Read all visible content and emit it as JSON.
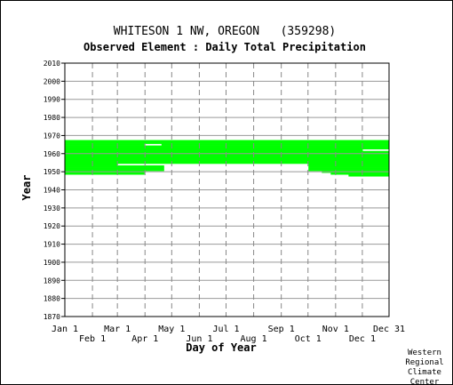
{
  "chart_data": {
    "type": "heatmap",
    "title": "WHITESON 1 NW, OREGON   (359298)",
    "subtitle": "Observed Element : Daily Total Precipitation",
    "xlabel": "Day of Year",
    "ylabel": "Year",
    "xlim": [
      1,
      365
    ],
    "ylim": [
      1870,
      2010
    ],
    "y_ticks": [
      2010,
      2000,
      1990,
      1980,
      1970,
      1960,
      1950,
      1940,
      1930,
      1920,
      1910,
      1900,
      1890,
      1880,
      1870
    ],
    "x_ticks_top_row": [
      {
        "day": 1,
        "label": "Jan 1"
      },
      {
        "day": 60,
        "label": "Mar 1"
      },
      {
        "day": 121,
        "label": "May 1"
      },
      {
        "day": 182,
        "label": "Jul 1"
      },
      {
        "day": 244,
        "label": "Sep 1"
      },
      {
        "day": 305,
        "label": "Nov 1"
      },
      {
        "day": 365,
        "label": "Dec 31"
      }
    ],
    "x_ticks_bottom_row": [
      {
        "day": 32,
        "label": "Feb 1"
      },
      {
        "day": 91,
        "label": "Apr 1"
      },
      {
        "day": 152,
        "label": "Jun 1"
      },
      {
        "day": 213,
        "label": "Aug 1"
      },
      {
        "day": 274,
        "label": "Oct 1"
      },
      {
        "day": 335,
        "label": "Dec 1"
      }
    ],
    "grid": true,
    "data_color": "#00ff00",
    "coverage_segments": [
      {
        "year": 1967,
        "start_day": 1,
        "end_day": 365
      },
      {
        "year": 1966,
        "start_day": 1,
        "end_day": 365
      },
      {
        "year": 1965,
        "start_day": 1,
        "end_day": 90
      },
      {
        "year": 1965,
        "start_day": 110,
        "end_day": 365
      },
      {
        "year": 1964,
        "start_day": 1,
        "end_day": 365
      },
      {
        "year": 1963,
        "start_day": 1,
        "end_day": 365
      },
      {
        "year": 1962,
        "start_day": 1,
        "end_day": 335
      },
      {
        "year": 1961,
        "start_day": 1,
        "end_day": 365
      },
      {
        "year": 1960,
        "start_day": 1,
        "end_day": 365
      },
      {
        "year": 1959,
        "start_day": 1,
        "end_day": 365
      },
      {
        "year": 1958,
        "start_day": 1,
        "end_day": 365
      },
      {
        "year": 1957,
        "start_day": 1,
        "end_day": 365
      },
      {
        "year": 1956,
        "start_day": 1,
        "end_day": 365
      },
      {
        "year": 1955,
        "start_day": 1,
        "end_day": 365
      },
      {
        "year": 1954,
        "start_day": 1,
        "end_day": 60
      },
      {
        "year": 1954,
        "start_day": 275,
        "end_day": 365
      },
      {
        "year": 1953,
        "start_day": 1,
        "end_day": 112
      },
      {
        "year": 1953,
        "start_day": 275,
        "end_day": 365
      },
      {
        "year": 1952,
        "start_day": 1,
        "end_day": 112
      },
      {
        "year": 1952,
        "start_day": 275,
        "end_day": 365
      },
      {
        "year": 1951,
        "start_day": 1,
        "end_day": 112
      },
      {
        "year": 1951,
        "start_day": 275,
        "end_day": 365
      },
      {
        "year": 1950,
        "start_day": 1,
        "end_day": 90
      },
      {
        "year": 1950,
        "start_day": 290,
        "end_day": 365
      },
      {
        "year": 1949,
        "start_day": 1,
        "end_day": 90
      },
      {
        "year": 1949,
        "start_day": 300,
        "end_day": 365
      },
      {
        "year": 1948,
        "start_day": 320,
        "end_day": 365
      }
    ]
  },
  "footer": {
    "line1": "Western",
    "line2": "Regional",
    "line3": "Climate",
    "line4": "Center"
  }
}
